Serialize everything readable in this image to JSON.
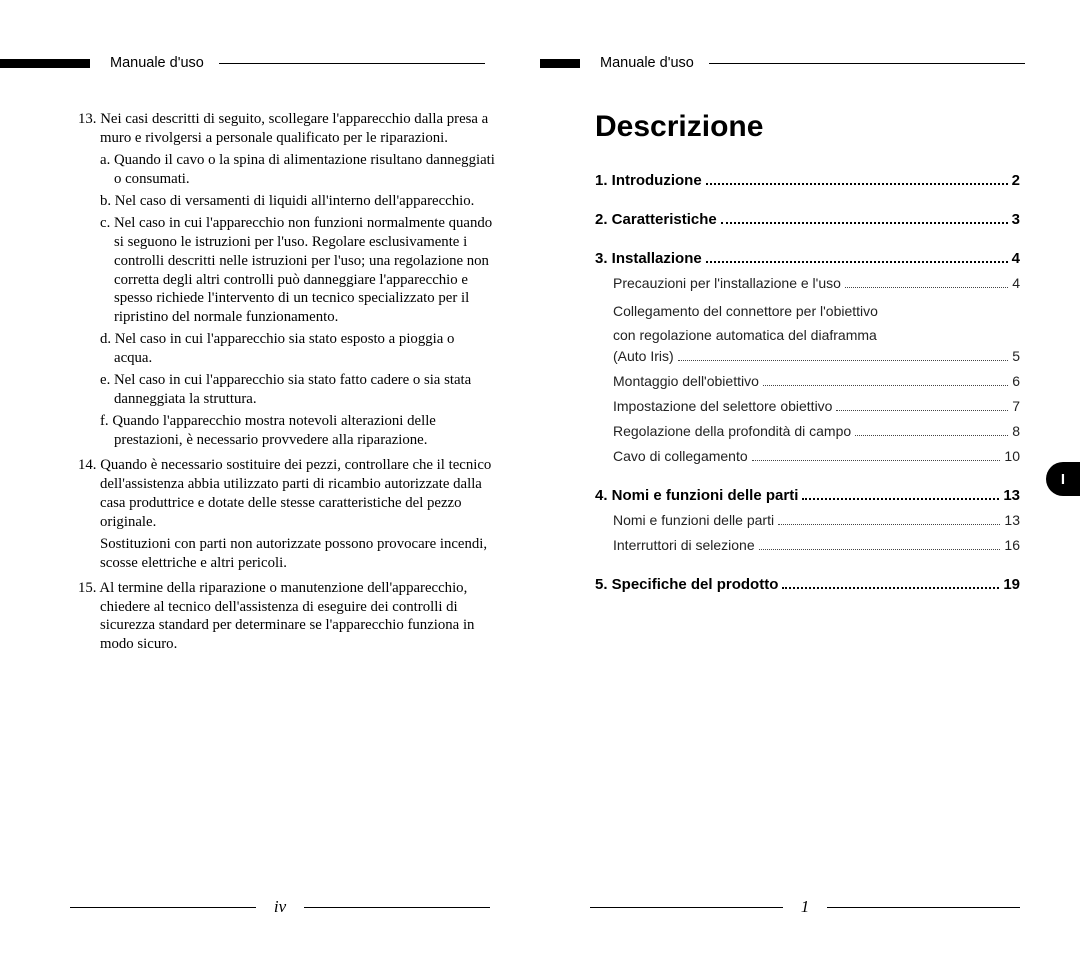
{
  "header": {
    "label": "Manuale d'uso"
  },
  "left": {
    "item13": "13. Nei casi descritti di seguito, scollegare l'apparecchio dalla presa a muro e rivolgersi a personale qualificato per le riparazioni.",
    "sub_a": "a. Quando il cavo o la spina di alimentazione risultano danneggiati o consumati.",
    "sub_b": "b. Nel caso di versamenti di liquidi all'interno dell'apparecchio.",
    "sub_c": "c. Nel caso in cui l'apparecchio non funzioni normalmente quando si seguono le istruzioni per l'uso. Regolare esclusivamente i controlli descritti nelle istruzioni per l'uso; una regolazione non corretta degli altri controlli può danneggiare l'apparecchio e spesso richiede l'intervento di un tecnico specializzato per il ripristino del normale funzionamento.",
    "sub_d": "d. Nel caso in cui l'apparecchio sia stato esposto a pioggia o acqua.",
    "sub_e": "e. Nel caso in cui l'apparecchio sia stato fatto cadere o sia stata danneggiata la struttura.",
    "sub_f": "f. Quando l'apparecchio mostra notevoli alterazioni delle prestazioni, è necessario provvedere alla riparazione.",
    "item14": "14. Quando è necessario sostituire dei pezzi, controllare che il tecnico dell'assistenza abbia utilizzato parti di ricambio autorizzate dalla casa produttrice e dotate delle stesse caratteristiche del pezzo originale.",
    "item14b": "Sostituzioni con parti non autorizzate possono provocare incendi, scosse elettriche e altri pericoli.",
    "item15": "15. Al termine della riparazione o manutenzione dell'apparecchio, chiedere al tecnico dell'assistenza di eseguire dei controlli di sicurezza standard per determinare se l'apparecchio funziona in modo sicuro.",
    "page_number": "iv"
  },
  "right": {
    "title": "Descrizione",
    "toc": {
      "s1": {
        "label": "1. Introduzione",
        "page": "2"
      },
      "s2": {
        "label": "2. Caratteristiche",
        "page": "3"
      },
      "s3": {
        "label": "3. Installazione",
        "page": "4"
      },
      "s3a": {
        "label": "Precauzioni per l'installazione e l'uso",
        "page": "4"
      },
      "s3b_l1": "Collegamento del connettore per l'obiettivo",
      "s3b_l2": "con regolazione automatica del diaframma",
      "s3b": {
        "label": "(Auto Iris)",
        "page": "5"
      },
      "s3c": {
        "label": "Montaggio dell'obiettivo",
        "page": "6"
      },
      "s3d": {
        "label": "Impostazione del selettore obiettivo",
        "page": "7"
      },
      "s3e": {
        "label": "Regolazione della profondità di campo",
        "page": "8"
      },
      "s3f": {
        "label": "Cavo di collegamento",
        "page": "10"
      },
      "s4": {
        "label": "4. Nomi e funzioni delle parti",
        "page": "13"
      },
      "s4a": {
        "label": "Nomi e funzioni delle parti",
        "page": "13"
      },
      "s4b": {
        "label": "Interruttori di selezione",
        "page": "16"
      },
      "s5": {
        "label": "5. Specifiche del prodotto",
        "page": "19"
      }
    },
    "tab": "I",
    "page_number": "1"
  }
}
